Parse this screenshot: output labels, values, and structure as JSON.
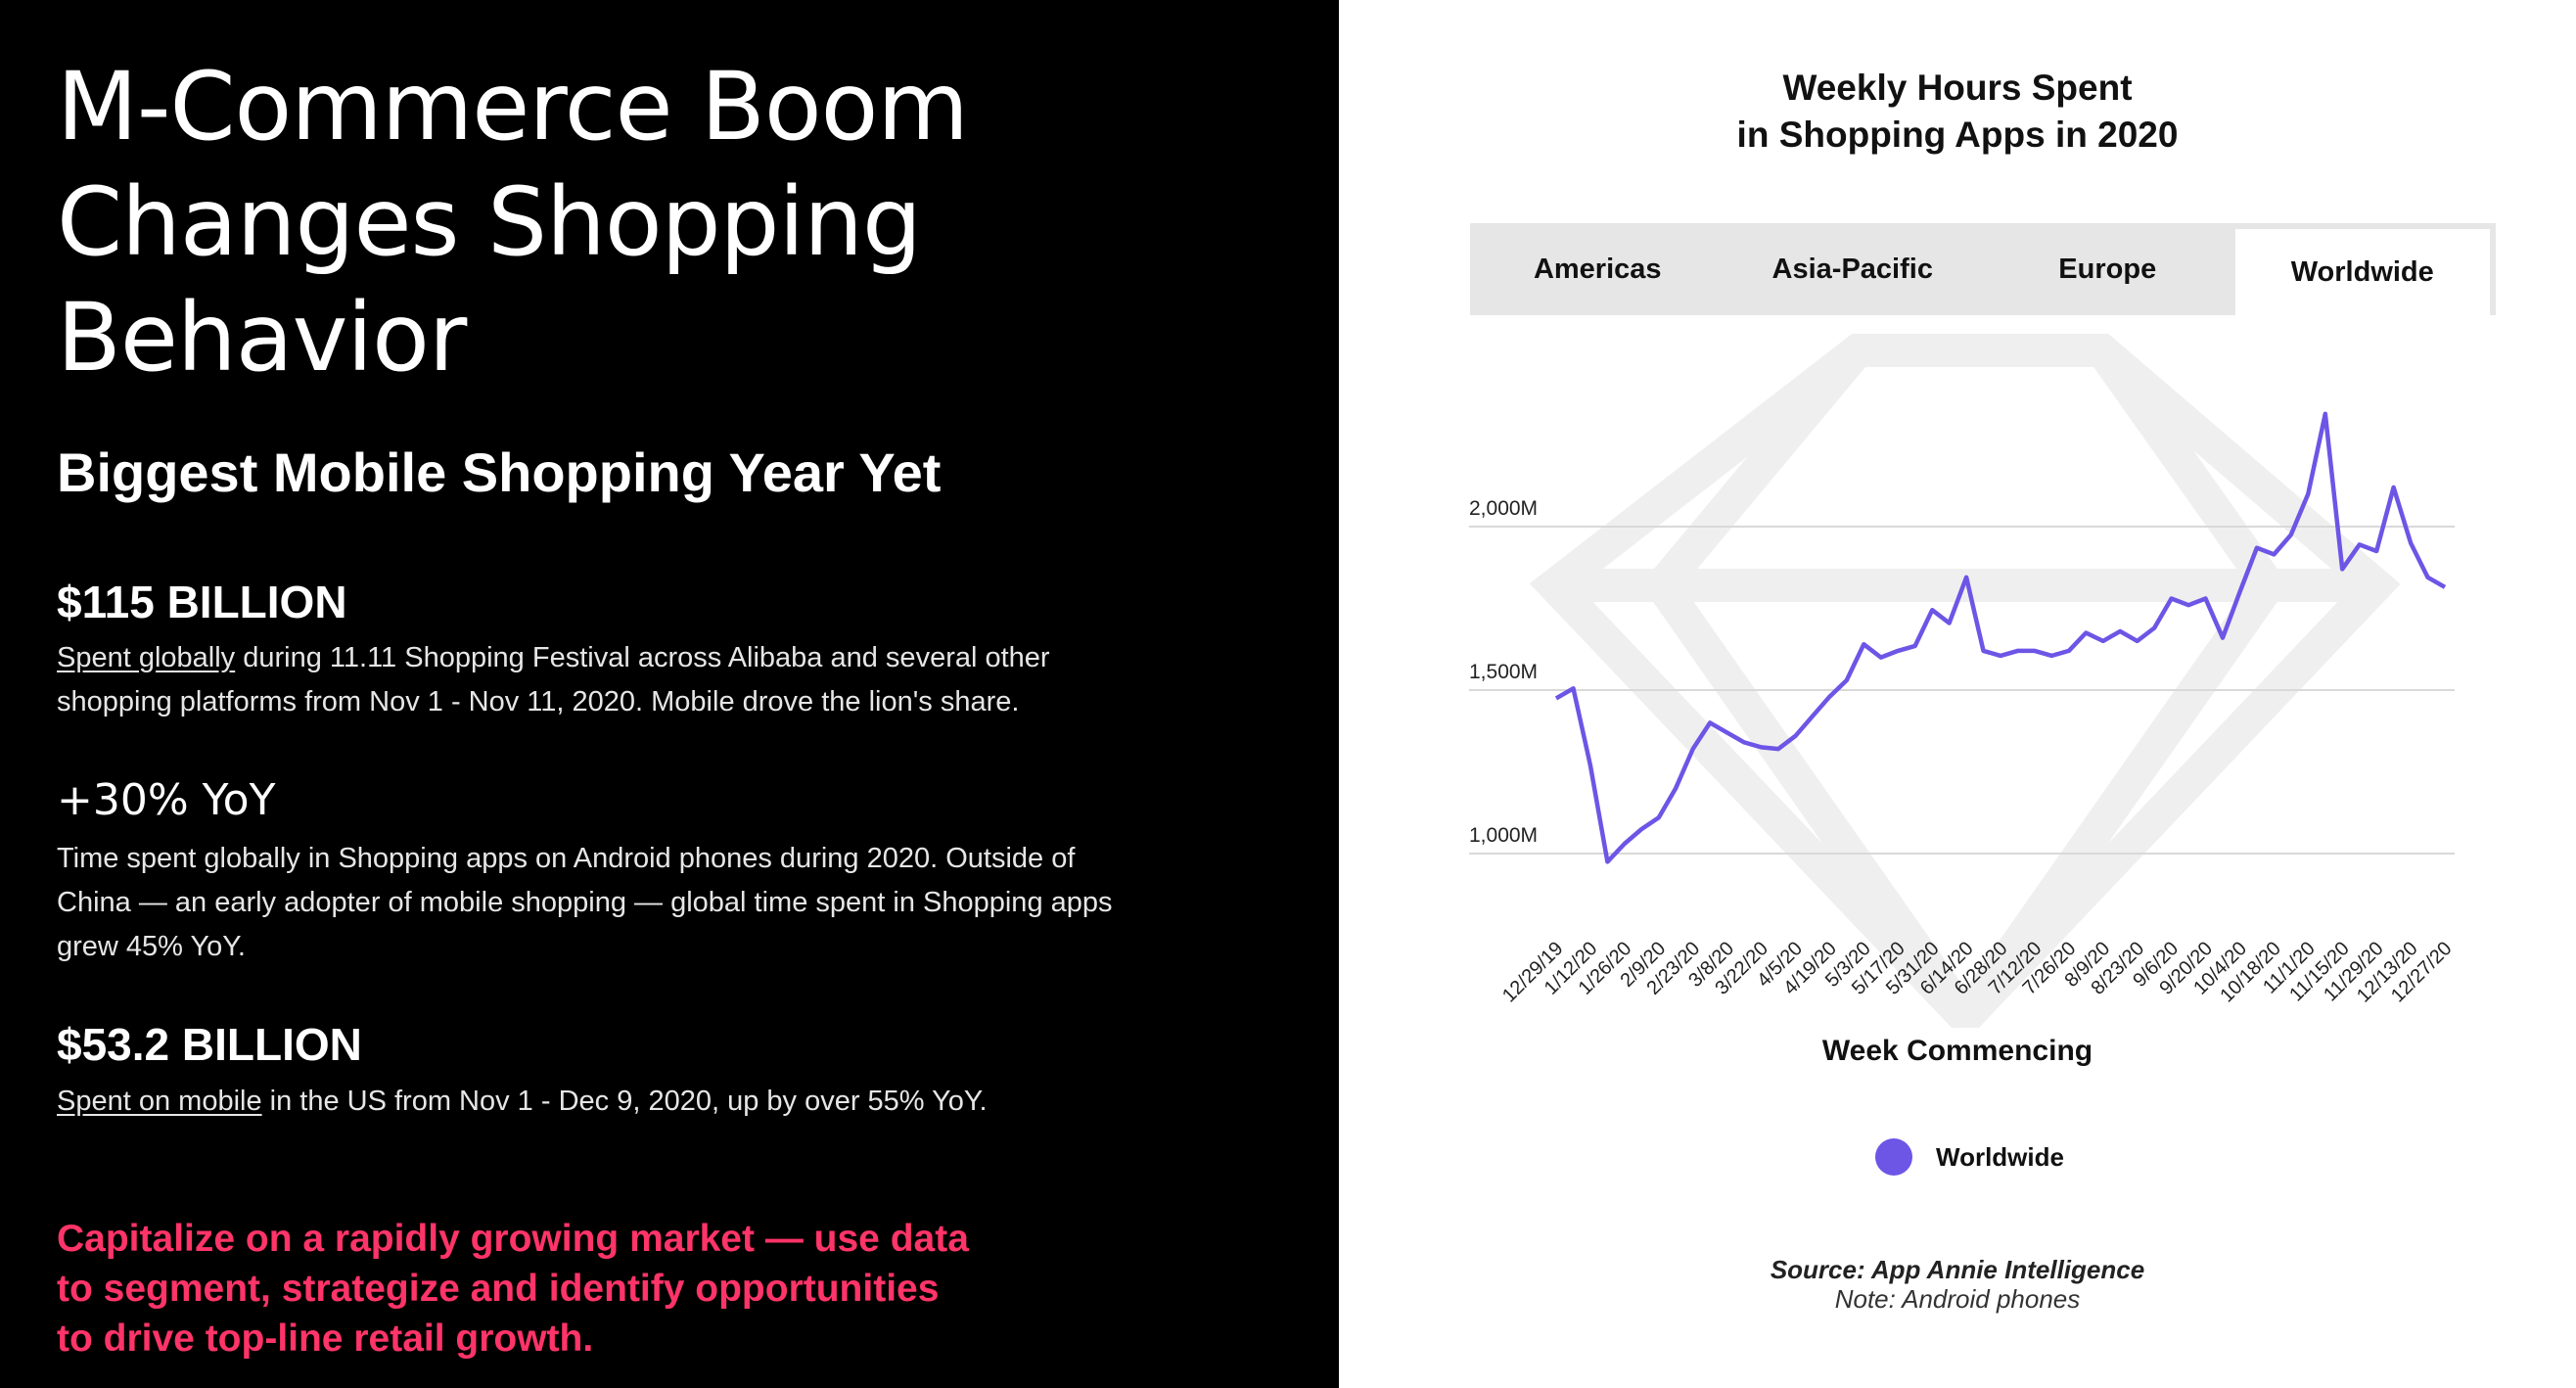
{
  "left": {
    "headline_lines": [
      "M-Commerce Boom",
      "Changes Shopping",
      "Behavior"
    ],
    "subheading": "Biggest Mobile Shopping Year Yet",
    "stat1": {
      "value": "$115 BILLION",
      "link": "Spent globally",
      "text": " during 11.11 Shopping Festival across Alibaba and several other shopping platforms from Nov 1 - Nov 11, 2020. Mobile drove the lion's share."
    },
    "stat2": {
      "value": "+30% YoY",
      "text": "Time spent globally in Shopping apps on Android phones during 2020. Outside of China — an early adopter of mobile shopping — global time spent in Shopping apps grew 45% YoY."
    },
    "stat3": {
      "value": "$53.2 BILLION",
      "link": "Spent on mobile",
      "text": " in the US from Nov 1 - Dec 9, 2020, up by over 55% YoY."
    },
    "cta_lines": [
      "Capitalize on a rapidly growing market — use data",
      "to segment, strategize and identify opportunities",
      "to drive top-line retail growth."
    ]
  },
  "tabs": [
    {
      "label": "Americas",
      "active": false
    },
    {
      "label": "Asia-Pacific",
      "active": false
    },
    {
      "label": "Europe",
      "active": false
    },
    {
      "label": "Worldwide",
      "active": true
    }
  ],
  "source": "Source: App Annie Intelligence",
  "note": "Note: Android phones",
  "colors": {
    "left_bg": "#000000",
    "accent_pink": "#ff3468",
    "series": "#6d55e6",
    "tab_bg": "#e6e6e6"
  },
  "chart_data": {
    "type": "line",
    "title_lines": [
      "Weekly Hours Spent",
      "in Shopping Apps in 2020"
    ],
    "xlabel": "Week Commencing",
    "ylabel": "",
    "y_unit": "M",
    "yticks": [
      1000,
      1500,
      2000
    ],
    "ytick_labels": [
      "1,000M",
      "1,500M",
      "2,000M"
    ],
    "ylim": [
      900,
      2300
    ],
    "grid": true,
    "legend": "bottom-center",
    "xtick_labels": [
      "12/29/19",
      "1/12/20",
      "1/26/20",
      "2/9/20",
      "2/23/20",
      "3/8/20",
      "3/22/20",
      "4/5/20",
      "4/19/20",
      "5/3/20",
      "5/17/20",
      "5/31/20",
      "6/14/20",
      "6/28/20",
      "7/12/20",
      "7/26/20",
      "8/9/20",
      "8/23/20",
      "9/6/20",
      "9/20/20",
      "10/4/20",
      "10/18/20",
      "11/1/20",
      "11/15/20",
      "11/29/20",
      "12/13/20",
      "12/27/20"
    ],
    "x": [
      "12/29/19",
      "1/5/20",
      "1/12/20",
      "1/19/20",
      "1/26/20",
      "2/2/20",
      "2/9/20",
      "2/16/20",
      "2/23/20",
      "3/1/20",
      "3/8/20",
      "3/15/20",
      "3/22/20",
      "3/29/20",
      "4/5/20",
      "4/12/20",
      "4/19/20",
      "4/26/20",
      "5/3/20",
      "5/10/20",
      "5/17/20",
      "5/24/20",
      "5/31/20",
      "6/7/20",
      "6/14/20",
      "6/21/20",
      "6/28/20",
      "7/5/20",
      "7/12/20",
      "7/19/20",
      "7/26/20",
      "8/2/20",
      "8/9/20",
      "8/16/20",
      "8/23/20",
      "8/30/20",
      "9/6/20",
      "9/13/20",
      "9/20/20",
      "9/27/20",
      "10/4/20",
      "10/11/20",
      "10/18/20",
      "10/25/20",
      "11/1/20",
      "11/8/20",
      "11/15/20",
      "11/22/20",
      "11/29/20",
      "12/6/20",
      "12/13/20",
      "12/20/20",
      "12/27/20"
    ],
    "series": [
      {
        "name": "Worldwide",
        "values": [
          1475,
          1505,
          1270,
          975,
          1030,
          1075,
          1110,
          1200,
          1320,
          1400,
          1370,
          1340,
          1325,
          1320,
          1360,
          1420,
          1480,
          1530,
          1640,
          1600,
          1620,
          1635,
          1745,
          1705,
          1845,
          1620,
          1605,
          1620,
          1620,
          1605,
          1620,
          1675,
          1650,
          1680,
          1650,
          1690,
          1780,
          1760,
          1780,
          1660,
          1800,
          1935,
          1915,
          1975,
          2100,
          2345,
          1870,
          1945,
          1925,
          2120,
          1950,
          1845,
          1815
        ]
      }
    ]
  }
}
